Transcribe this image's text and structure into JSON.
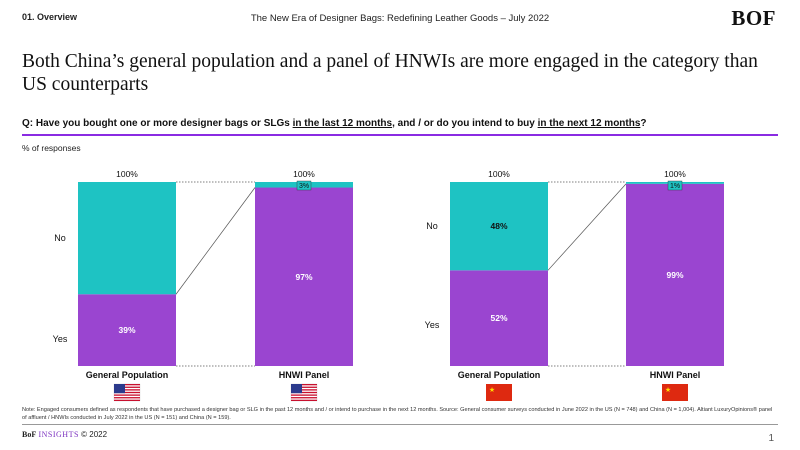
{
  "header": {
    "section": "01. Overview",
    "doc_title": "The New Era of Designer Bags: Redefining Leather Goods – July 2022",
    "logo": "BOF"
  },
  "headline": "Both China’s general population and a panel of HNWIs are more engaged in the category than US counterparts",
  "question": {
    "prefix": "Q: Have you bought one or more designer bags or SLGs ",
    "link1": "in the last 12 months",
    "middle": ", and / or do you intend to buy ",
    "link2": "in the next 12 months",
    "suffix": "?"
  },
  "responses_label": "% of responses",
  "colors": {
    "yes": "#9a45d0",
    "no": "#1ec3c3",
    "accent": "#8a2be2"
  },
  "chart_data": [
    {
      "type": "bar",
      "stacked": true,
      "country": "US",
      "categories": [
        "General Population",
        "HNWI Panel"
      ],
      "series": [
        {
          "name": "Yes",
          "values": [
            39,
            97
          ]
        },
        {
          "name": "No",
          "values": [
            61,
            3
          ]
        }
      ],
      "totals": [
        "100%",
        "100%"
      ],
      "value_labels": {
        "Yes": [
          "39%",
          "97%"
        ],
        "No": [
          "",
          "3%"
        ]
      },
      "ylim": [
        0,
        100
      ]
    },
    {
      "type": "bar",
      "stacked": true,
      "country": "China",
      "categories": [
        "General Population",
        "HNWI Panel"
      ],
      "series": [
        {
          "name": "Yes",
          "values": [
            52,
            99
          ]
        },
        {
          "name": "No",
          "values": [
            48,
            1
          ]
        }
      ],
      "totals": [
        "100%",
        "100%"
      ],
      "value_labels": {
        "Yes": [
          "52%",
          "99%"
        ],
        "No": [
          "48%",
          "1%"
        ]
      },
      "ylim": [
        0,
        100
      ]
    }
  ],
  "note": "Note: Engaged consumers defined as respondents that have purchased a designer bag or SLG in the past 12 months and / or intend to purchase in the next 12 months. Source: General consumer surveys conducted in June 2022 in the US (N = 748) and China (N = 1,004). Altiant LuxuryOpinions® panel of affluent / HNWIs conducted in July 2022 in the US (N = 151) and China (N = 159).",
  "footer": {
    "brand": "BoF",
    "insights": "INSIGHTS",
    "copyright": "© 2022"
  },
  "page_number": "1"
}
